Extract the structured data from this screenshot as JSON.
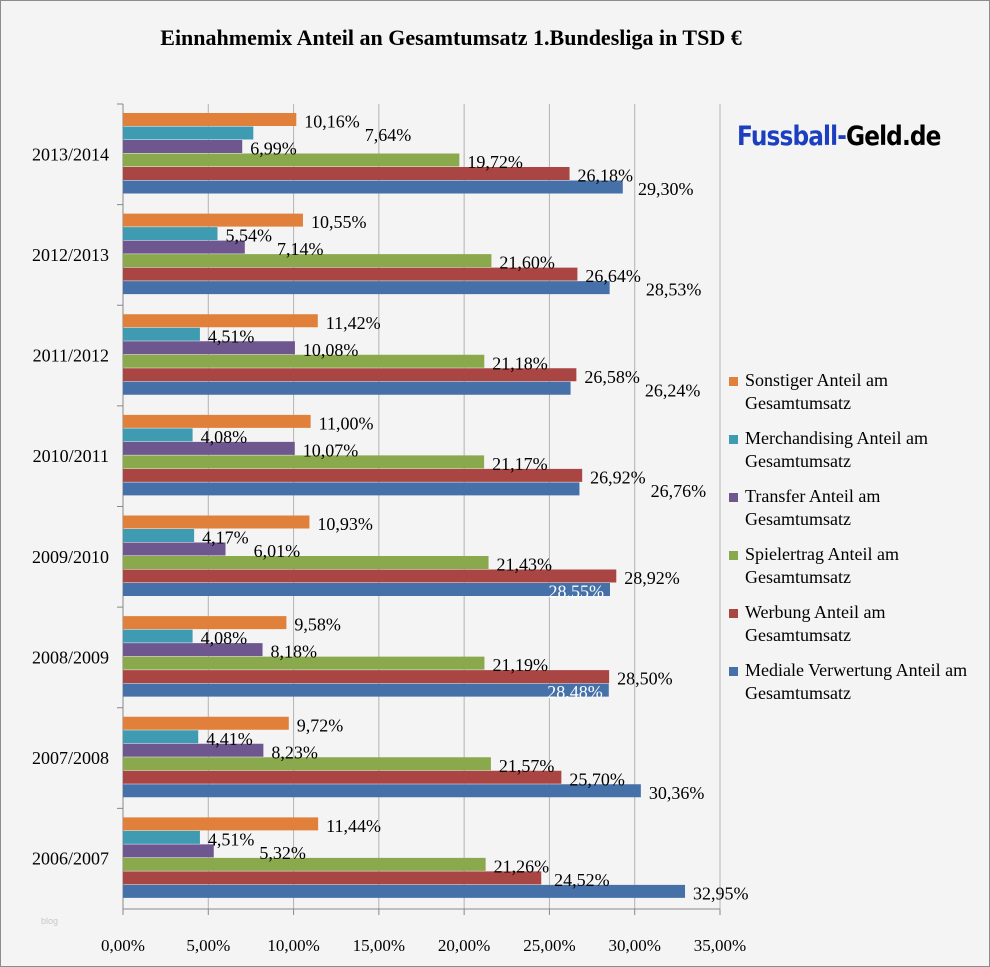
{
  "chart_data": {
    "type": "bar",
    "orientation": "horizontal",
    "title": "Einnahmemix Anteil an Gesamtumsatz 1.Bundesliga in TSD €",
    "categories": [
      "2013/2014",
      "2012/2013",
      "2011/2012",
      "2010/2011",
      "2009/2010",
      "2008/2009",
      "2007/2008",
      "2006/2007"
    ],
    "xlim": [
      0,
      35
    ],
    "xticks": [
      "0,00%",
      "5,00%",
      "10,00%",
      "15,00%",
      "20,00%",
      "25,00%",
      "30,00%",
      "35,00%"
    ],
    "xtick_values": [
      0,
      5,
      10,
      15,
      20,
      25,
      30,
      35
    ],
    "grid": "vertical",
    "legend": "right",
    "series": [
      {
        "name": "Sonstiger Anteil am Gesamtumsatz",
        "color": "#E0803A",
        "values": [
          10.16,
          10.55,
          11.42,
          11.0,
          10.93,
          9.58,
          9.72,
          11.44
        ]
      },
      {
        "name": "Merchandising Anteil am Gesamtumsatz",
        "color": "#3E9BB2",
        "values": [
          7.64,
          5.54,
          4.51,
          4.08,
          4.17,
          4.08,
          4.41,
          4.51
        ]
      },
      {
        "name": "Transfer Anteil am Gesamtumsatz",
        "color": "#6E568E",
        "values": [
          6.99,
          7.14,
          10.08,
          10.07,
          6.01,
          8.18,
          8.23,
          5.32
        ]
      },
      {
        "name": "Spielertrag Anteil am Gesamtumsatz",
        "color": "#8AA94D",
        "values": [
          19.72,
          21.6,
          21.18,
          21.17,
          21.43,
          21.19,
          21.57,
          21.26
        ]
      },
      {
        "name": "Werbung Anteil am Gesamtumsatz",
        "color": "#A94543",
        "values": [
          26.18,
          26.64,
          26.58,
          26.92,
          28.92,
          28.5,
          25.7,
          24.52
        ]
      },
      {
        "name": "Mediale Verwertung Anteil am Gesamtumsatz",
        "color": "#4571A8",
        "values": [
          29.3,
          28.53,
          26.24,
          26.76,
          28.55,
          28.48,
          30.36,
          32.95
        ]
      }
    ]
  },
  "logo": {
    "part1": "Fussball-",
    "part2": "Geld.de"
  },
  "watermark": "blog"
}
